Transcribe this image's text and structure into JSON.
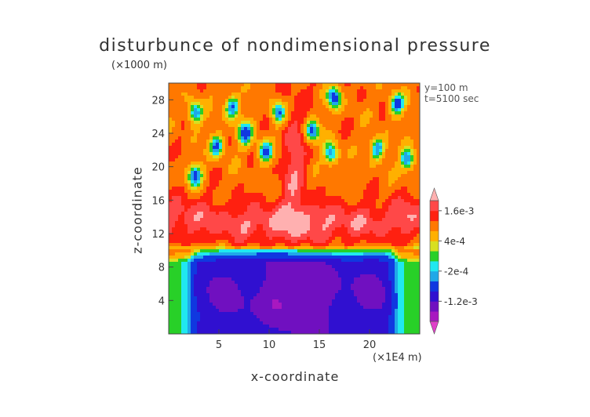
{
  "chart_data": {
    "type": "heatmap",
    "title": "disturbunce of nondimensional pressure",
    "xlabel": "x-coordinate",
    "ylabel": "z-coordinate",
    "x_scale_label": "(×1E4 m)",
    "y_scale_label": "(×1000 m)",
    "annotations": [
      "y=100 m",
      "t=5100 sec"
    ],
    "xlim": [
      0,
      25
    ],
    "ylim": [
      0,
      30
    ],
    "x_ticks": [
      5,
      10,
      15,
      20
    ],
    "x_tick_labels": [
      "5",
      "10",
      "15",
      "20"
    ],
    "y_ticks": [
      4,
      8,
      12,
      16,
      20,
      24,
      28
    ],
    "y_tick_labels": [
      "4",
      "8",
      "12",
      "16",
      "20",
      "24",
      "28"
    ],
    "colorbar": {
      "levels": [
        -0.002,
        -0.0016,
        -0.0012,
        -0.0008,
        -0.0004,
        -0.0002,
        0,
        0.0002,
        0.0004,
        0.0008,
        0.0012,
        0.0016,
        0.002
      ],
      "colors": [
        "#e040c8",
        "#a818c0",
        "#7010c0",
        "#3010d0",
        "#1038e0",
        "#20a8e8",
        "#20e8f0",
        "#28d028",
        "#d8e020",
        "#ffb000",
        "#ff7800",
        "#ff2010",
        "#ff4848",
        "#ffb0b0"
      ],
      "tick_values": [
        0.0016,
        0.0004,
        -0.0002,
        -0.0012
      ],
      "tick_labels": [
        "1.6e-3",
        "4e-4",
        "-2e-4",
        "-1.2e-3"
      ],
      "extend": "both"
    },
    "legend_position": "right",
    "grid": false
  }
}
